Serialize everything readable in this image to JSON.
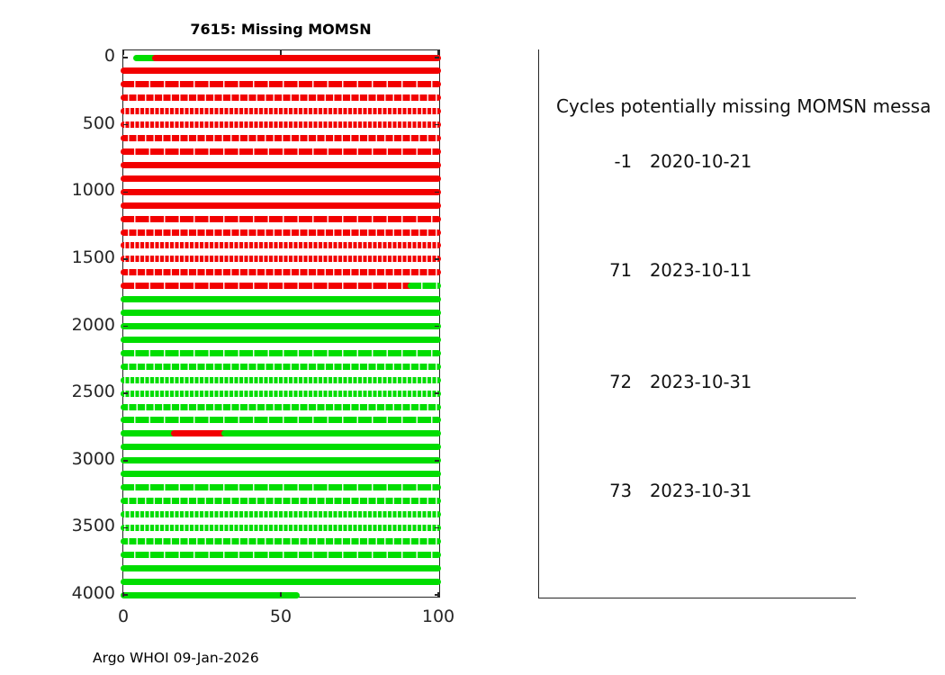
{
  "figure": {
    "title": "7615: Missing MOMSN",
    "footer": "Argo WHOI 09-Jan-2026"
  },
  "panel": {
    "header": "Cycles potentially missing MOMSN messa",
    "entries": [
      {
        "cycle": "-1",
        "date": "2020-10-21"
      },
      {
        "cycle": "71",
        "date": "2023-10-11"
      },
      {
        "cycle": "72",
        "date": "2023-10-31"
      },
      {
        "cycle": "73",
        "date": "2023-10-31"
      }
    ]
  },
  "chart_data": {
    "type": "line",
    "title": "7615: Missing MOMSN",
    "xlabel": "",
    "ylabel": "",
    "xlim": [
      0,
      100
    ],
    "ylim": [
      4050,
      -50
    ],
    "y_axis_inverted": true,
    "grid": false,
    "x_ticks": [
      0,
      50,
      100
    ],
    "y_ticks": [
      0,
      500,
      1000,
      1500,
      2000,
      2500,
      3000,
      3500,
      4000
    ],
    "colors": {
      "received": "#00dd00",
      "missing": "#f20000"
    },
    "rows": [
      {
        "y": 0,
        "segments": [
          {
            "x0": 4,
            "x1": 10,
            "status": "received"
          },
          {
            "x0": 10,
            "x1": 100,
            "status": "missing"
          }
        ]
      },
      {
        "y": 100,
        "segments": [
          {
            "x0": 0,
            "x1": 100,
            "status": "missing"
          }
        ]
      },
      {
        "y": 200,
        "segments": [
          {
            "x0": 0,
            "x1": 100,
            "status": "missing"
          }
        ]
      },
      {
        "y": 300,
        "segments": [
          {
            "x0": 0,
            "x1": 100,
            "status": "missing"
          }
        ]
      },
      {
        "y": 400,
        "segments": [
          {
            "x0": 0,
            "x1": 100,
            "status": "missing"
          }
        ]
      },
      {
        "y": 500,
        "segments": [
          {
            "x0": 0,
            "x1": 100,
            "status": "missing"
          }
        ]
      },
      {
        "y": 600,
        "segments": [
          {
            "x0": 0,
            "x1": 100,
            "status": "missing"
          }
        ]
      },
      {
        "y": 700,
        "segments": [
          {
            "x0": 0,
            "x1": 100,
            "status": "missing"
          }
        ]
      },
      {
        "y": 800,
        "segments": [
          {
            "x0": 0,
            "x1": 100,
            "status": "missing"
          }
        ]
      },
      {
        "y": 900,
        "segments": [
          {
            "x0": 0,
            "x1": 100,
            "status": "missing"
          }
        ]
      },
      {
        "y": 1000,
        "segments": [
          {
            "x0": 0,
            "x1": 100,
            "status": "missing"
          }
        ]
      },
      {
        "y": 1100,
        "segments": [
          {
            "x0": 0,
            "x1": 100,
            "status": "missing"
          }
        ]
      },
      {
        "y": 1200,
        "segments": [
          {
            "x0": 0,
            "x1": 100,
            "status": "missing"
          }
        ]
      },
      {
        "y": 1300,
        "segments": [
          {
            "x0": 0,
            "x1": 100,
            "status": "missing"
          }
        ]
      },
      {
        "y": 1400,
        "segments": [
          {
            "x0": 0,
            "x1": 100,
            "status": "missing"
          }
        ]
      },
      {
        "y": 1500,
        "segments": [
          {
            "x0": 0,
            "x1": 100,
            "status": "missing"
          }
        ]
      },
      {
        "y": 1600,
        "segments": [
          {
            "x0": 0,
            "x1": 100,
            "status": "missing"
          }
        ]
      },
      {
        "y": 1700,
        "segments": [
          {
            "x0": 0,
            "x1": 91,
            "status": "missing"
          },
          {
            "x0": 91,
            "x1": 100,
            "status": "received"
          }
        ]
      },
      {
        "y": 1800,
        "segments": [
          {
            "x0": 0,
            "x1": 100,
            "status": "received"
          }
        ]
      },
      {
        "y": 1900,
        "segments": [
          {
            "x0": 0,
            "x1": 100,
            "status": "received"
          }
        ]
      },
      {
        "y": 2000,
        "segments": [
          {
            "x0": 0,
            "x1": 100,
            "status": "received"
          }
        ]
      },
      {
        "y": 2100,
        "segments": [
          {
            "x0": 0,
            "x1": 100,
            "status": "received"
          }
        ]
      },
      {
        "y": 2200,
        "segments": [
          {
            "x0": 0,
            "x1": 100,
            "status": "received"
          }
        ]
      },
      {
        "y": 2300,
        "segments": [
          {
            "x0": 0,
            "x1": 100,
            "status": "received"
          }
        ]
      },
      {
        "y": 2400,
        "segments": [
          {
            "x0": 0,
            "x1": 100,
            "status": "received"
          }
        ]
      },
      {
        "y": 2500,
        "segments": [
          {
            "x0": 0,
            "x1": 100,
            "status": "received"
          }
        ]
      },
      {
        "y": 2600,
        "segments": [
          {
            "x0": 0,
            "x1": 100,
            "status": "received"
          }
        ]
      },
      {
        "y": 2700,
        "segments": [
          {
            "x0": 0,
            "x1": 100,
            "status": "received"
          }
        ]
      },
      {
        "y": 2800,
        "segments": [
          {
            "x0": 0,
            "x1": 16,
            "status": "received"
          },
          {
            "x0": 16,
            "x1": 32,
            "status": "missing"
          },
          {
            "x0": 32,
            "x1": 100,
            "status": "received"
          }
        ]
      },
      {
        "y": 2900,
        "segments": [
          {
            "x0": 0,
            "x1": 100,
            "status": "received"
          }
        ]
      },
      {
        "y": 3000,
        "segments": [
          {
            "x0": 0,
            "x1": 100,
            "status": "received"
          }
        ]
      },
      {
        "y": 3100,
        "segments": [
          {
            "x0": 0,
            "x1": 100,
            "status": "received"
          }
        ]
      },
      {
        "y": 3200,
        "segments": [
          {
            "x0": 0,
            "x1": 100,
            "status": "received"
          }
        ]
      },
      {
        "y": 3300,
        "segments": [
          {
            "x0": 0,
            "x1": 100,
            "status": "received"
          }
        ]
      },
      {
        "y": 3400,
        "segments": [
          {
            "x0": 0,
            "x1": 100,
            "status": "received"
          }
        ]
      },
      {
        "y": 3500,
        "segments": [
          {
            "x0": 0,
            "x1": 100,
            "status": "received"
          }
        ]
      },
      {
        "y": 3600,
        "segments": [
          {
            "x0": 0,
            "x1": 100,
            "status": "received"
          }
        ]
      },
      {
        "y": 3700,
        "segments": [
          {
            "x0": 0,
            "x1": 100,
            "status": "received"
          }
        ]
      },
      {
        "y": 3800,
        "segments": [
          {
            "x0": 0,
            "x1": 100,
            "status": "received"
          }
        ]
      },
      {
        "y": 3900,
        "segments": [
          {
            "x0": 0,
            "x1": 100,
            "status": "received"
          }
        ]
      },
      {
        "y": 4000,
        "segments": [
          {
            "x0": 0,
            "x1": 55,
            "status": "received"
          }
        ]
      }
    ]
  }
}
